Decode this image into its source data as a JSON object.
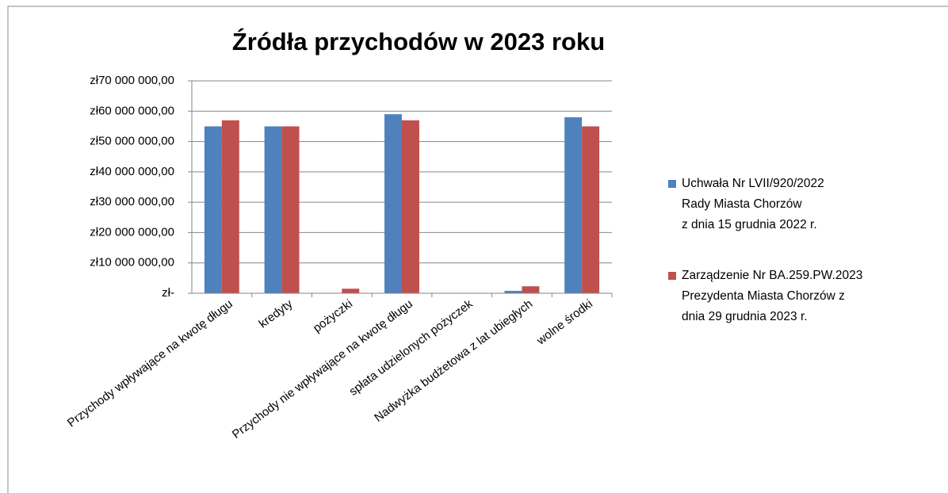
{
  "chart_data": {
    "type": "bar",
    "title": "Źródła przychodów w 2023 roku",
    "categories": [
      "Przychody wpływające na kwotę długu",
      "kredyty",
      "pożyczki",
      "Przychody nie wpływające na kwotę długu",
      "spłata udzielonych pożyczek",
      "Nadwyżka budżetowa z lat ubiegłych",
      "wolne środki"
    ],
    "series": [
      {
        "name": "Uchwała Nr LVII/920/2022\nRady Miasta Chorzów\nz dnia 15 grudnia 2022 r.",
        "color": "#4f81bd",
        "values": [
          55000000,
          55000000,
          0,
          59000000,
          0,
          800000,
          58000000
        ]
      },
      {
        "name": "Zarządzenie Nr BA.259.PW.2023\nPrezydenta Miasta Chorzów z\ndnia 29 grudnia 2023 r.",
        "color": "#c0504d",
        "values": [
          57000000,
          55000000,
          1500000,
          57000000,
          0,
          2300000,
          55000000
        ]
      }
    ],
    "ylim": [
      0,
      70000000
    ],
    "yticks": [
      {
        "value": 0,
        "label": "zł-"
      },
      {
        "value": 10000000,
        "label": "zł10 000 000,00"
      },
      {
        "value": 20000000,
        "label": "zł20 000 000,00"
      },
      {
        "value": 30000000,
        "label": "zł30 000 000,00"
      },
      {
        "value": 40000000,
        "label": "zł40 000 000,00"
      },
      {
        "value": 50000000,
        "label": "zł50 000 000,00"
      },
      {
        "value": 60000000,
        "label": "zł60 000 000,00"
      },
      {
        "value": 70000000,
        "label": "zł70 000 000,00"
      }
    ],
    "grid": true,
    "legend": "right"
  }
}
